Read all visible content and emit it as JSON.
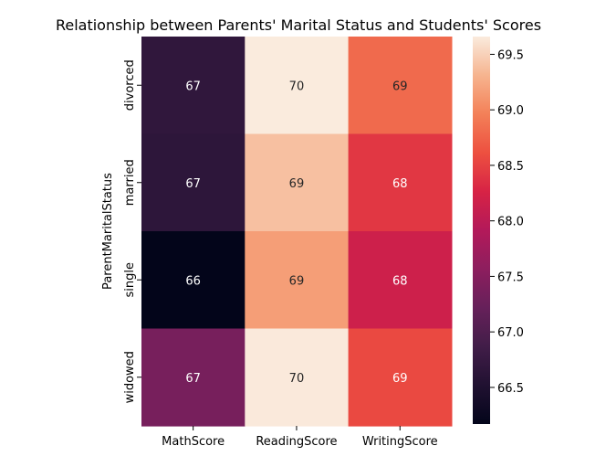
{
  "chart_data": {
    "type": "heatmap",
    "title": "Relationship between Parents' Marital Status and Students' Scores",
    "xlabel": "",
    "ylabel": "ParentMaritalStatus",
    "x_categories": [
      "MathScore",
      "ReadingScore",
      "WritingScore"
    ],
    "y_categories": [
      "divorced",
      "married",
      "single",
      "widowed"
    ],
    "values": [
      [
        66.69,
        69.66,
        68.8
      ],
      [
        66.66,
        69.39,
        68.42
      ],
      [
        66.17,
        69.16,
        68.17
      ],
      [
        67.37,
        69.65,
        68.56
      ]
    ],
    "annotations": [
      [
        "67",
        "70",
        "69"
      ],
      [
        "67",
        "69",
        "68"
      ],
      [
        "66",
        "69",
        "68"
      ],
      [
        "67",
        "70",
        "69"
      ]
    ],
    "colorbar": {
      "min": 66.17,
      "max": 69.66,
      "ticks": [
        66.5,
        67.0,
        67.5,
        68.0,
        68.5,
        69.0,
        69.5
      ],
      "tick_labels": [
        "66.5",
        "67.0",
        "67.5",
        "68.0",
        "68.5",
        "69.0",
        "69.5"
      ],
      "colormap": "rocket"
    }
  }
}
